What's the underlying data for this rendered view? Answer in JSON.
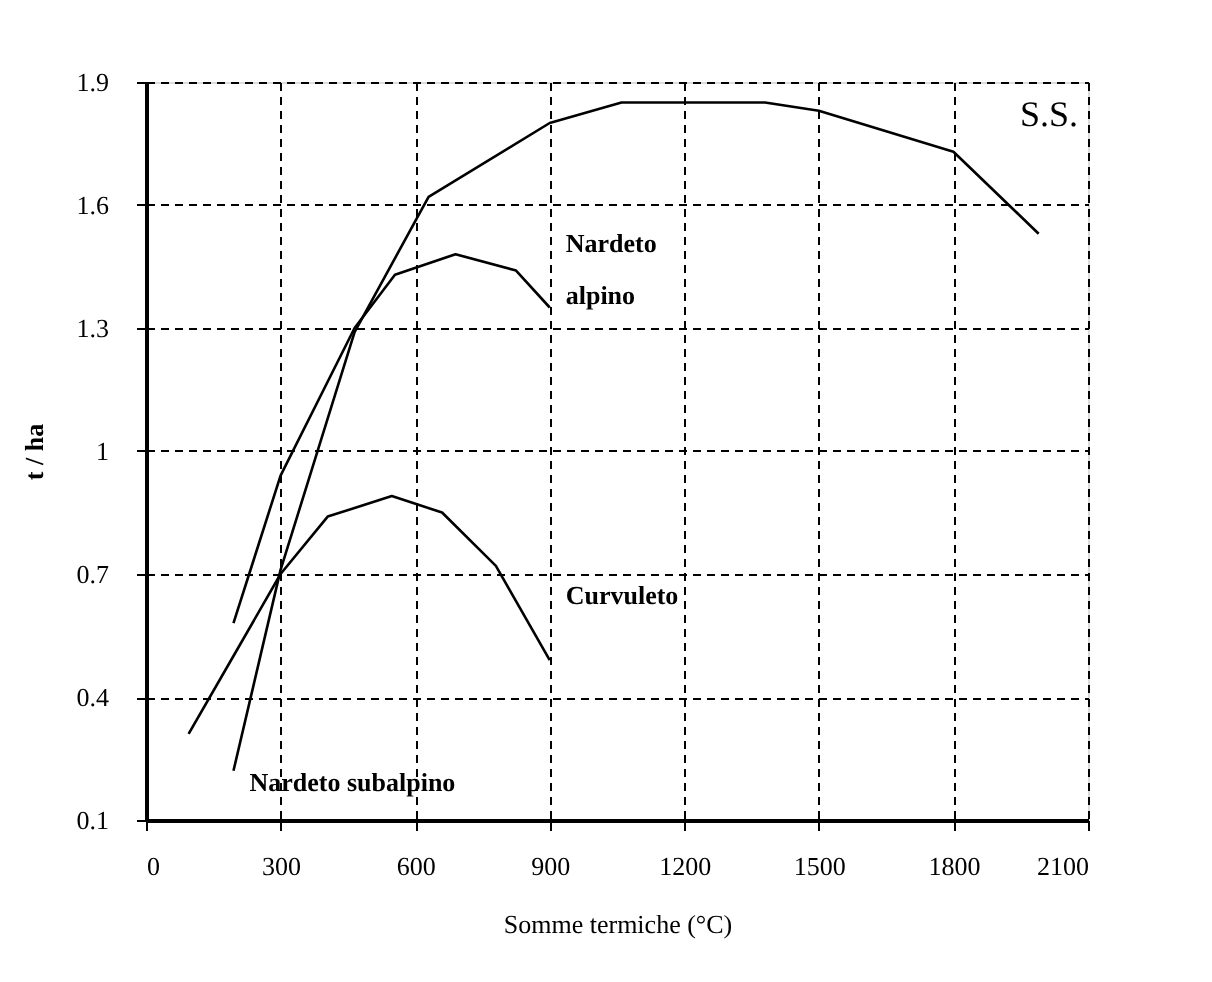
{
  "chart_data": {
    "type": "line",
    "xlabel": "Somme termiche (°C)",
    "ylabel": "t / ha",
    "annotations": [
      "S.S."
    ],
    "xlim": [
      0,
      2100
    ],
    "xticks": [
      0,
      300,
      600,
      900,
      1200,
      1500,
      1800,
      2100
    ],
    "ylim": [
      0.1,
      1.9
    ],
    "yticks": [
      0.1,
      0.4,
      0.7,
      1,
      1.3,
      1.6,
      1.9
    ],
    "grid": true,
    "line_style": "solid",
    "series": [
      {
        "name": "Nardeto alpino",
        "color": "#000000",
        "x": [
          195,
          300,
          465,
          555,
          690,
          825,
          900
        ],
        "values": [
          0.58,
          0.94,
          1.3,
          1.43,
          1.48,
          1.44,
          1.35
        ]
      },
      {
        "name": "Curvuleto",
        "color": "#000000",
        "x": [
          95,
          195,
          300,
          405,
          548,
          660,
          780,
          900
        ],
        "values": [
          0.31,
          0.5,
          0.7,
          0.84,
          0.89,
          0.85,
          0.72,
          0.49
        ]
      },
      {
        "name": "Nardeto subalpino",
        "color": "#000000",
        "x": [
          195,
          300,
          465,
          600,
          630,
          900,
          1060,
          1380,
          1500,
          1800,
          1990
        ],
        "values": [
          0.22,
          0.71,
          1.29,
          1.56,
          1.62,
          1.8,
          1.85,
          1.85,
          1.83,
          1.73,
          1.53
        ]
      }
    ]
  }
}
